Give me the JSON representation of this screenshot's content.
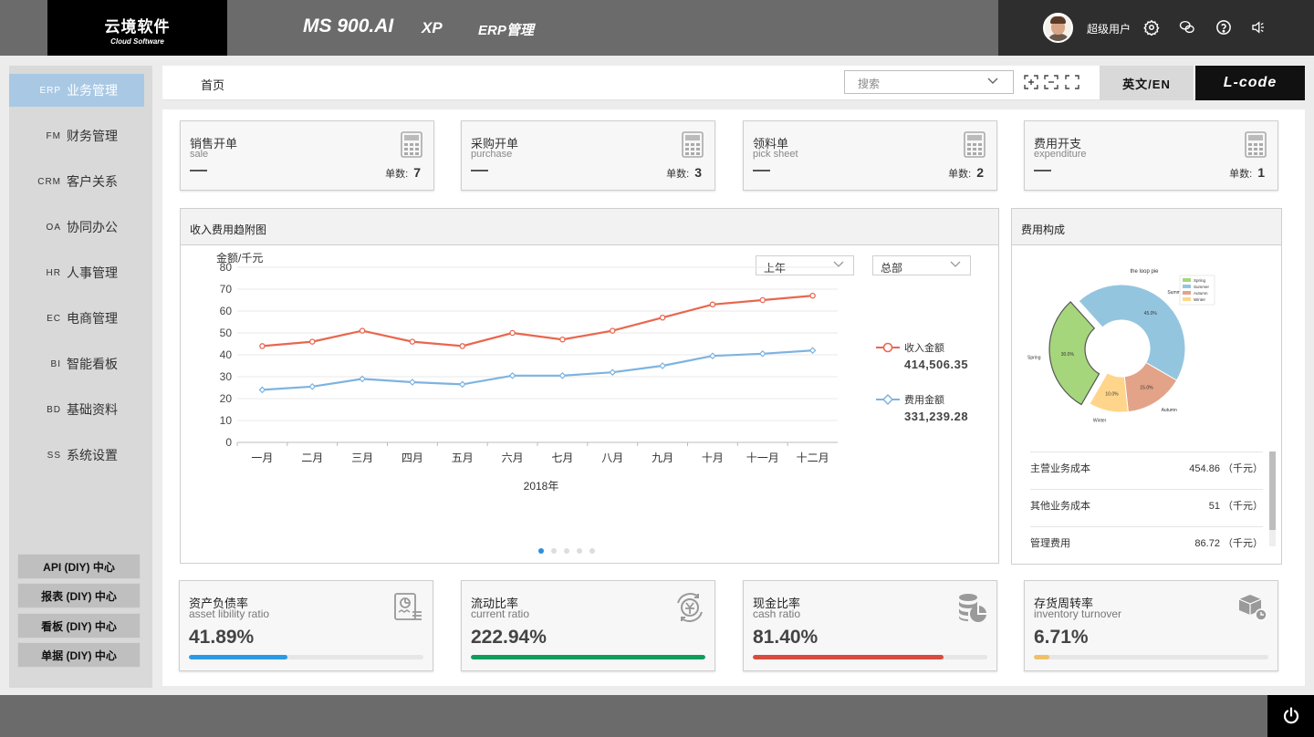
{
  "topbar": {
    "logo_cn": "云境软件",
    "logo_en": "Cloud Software",
    "brand": "MS 900.AI",
    "nav_xp": "XP",
    "nav_erp": "ERP管理",
    "username": "超级用户",
    "icons": [
      "gear-icon",
      "wechat-icon",
      "help-icon",
      "speaker-icon"
    ]
  },
  "sidebar": {
    "items": [
      {
        "code": "ERP",
        "label": "业务管理",
        "active": true
      },
      {
        "code": "FM",
        "label": "财务管理"
      },
      {
        "code": "CRM",
        "label": "客户关系"
      },
      {
        "code": "OA",
        "label": "协同办公"
      },
      {
        "code": "HR",
        "label": "人事管理"
      },
      {
        "code": "EC",
        "label": "电商管理"
      },
      {
        "code": "BI",
        "label": "智能看板"
      },
      {
        "code": "BD",
        "label": "基础资料"
      },
      {
        "code": "SS",
        "label": "系统设置"
      }
    ],
    "diy": [
      "API (DIY) 中心",
      "报表 (DIY) 中心",
      "看板 (DIY) 中心",
      "单据 (DIY) 中心"
    ]
  },
  "header": {
    "breadcrumb": "首页",
    "search_placeholder": "搜索",
    "lang": "英文/EN",
    "lcode": "L-code"
  },
  "stat_cards": [
    {
      "title": "销售开单",
      "sub": "sale",
      "count_label": "单数:",
      "count": "7"
    },
    {
      "title": "采购开单",
      "sub": "purchase",
      "count_label": "单数:",
      "count": "3"
    },
    {
      "title": "领料单",
      "sub": "pick sheet",
      "count_label": "单数:",
      "count": "2"
    },
    {
      "title": "费用开支",
      "sub": "expenditure",
      "count_label": "单数:",
      "count": "1"
    }
  ],
  "trend_panel": {
    "title": "收入费用趋附图",
    "select_period": "上年",
    "select_scope": "总部"
  },
  "chart_data": [
    {
      "type": "line",
      "ylabel": "金额/千元",
      "xlabel": "2018年",
      "categories": [
        "一月",
        "二月",
        "三月",
        "四月",
        "五月",
        "六月",
        "七月",
        "八月",
        "九月",
        "十月",
        "十一月",
        "十二月"
      ],
      "ylim": [
        0,
        80
      ],
      "yticks": [
        0,
        10,
        20,
        30,
        40,
        50,
        60,
        70,
        80
      ],
      "grid": true,
      "legend": "right",
      "series": [
        {
          "name": "收入金额",
          "total": "414,506.35",
          "color": "#e8674e",
          "values": [
            44,
            46,
            51,
            46,
            44,
            50,
            47,
            51,
            57,
            63,
            65,
            67
          ]
        },
        {
          "name": "费用金额",
          "total": "331,239.28",
          "color": "#7db3e0",
          "values": [
            24,
            25.5,
            29,
            27.5,
            26.5,
            30.5,
            30.5,
            32,
            35,
            39.5,
            40.5,
            42
          ]
        }
      ]
    },
    {
      "type": "pie",
      "title": "the loop pie",
      "legend": "top-right",
      "slices": [
        {
          "name": "Spring",
          "value": 30.0,
          "label": "30.0%",
          "color": "#a6d67c",
          "exploded": true
        },
        {
          "name": "Summer",
          "value": 45.0,
          "label": "45.0%",
          "color": "#94c5df"
        },
        {
          "name": "Autumn",
          "value": 15.0,
          "label": "15.0%",
          "color": "#e2a388"
        },
        {
          "name": "Winter",
          "value": 10.0,
          "label": "10.0%",
          "color": "#ffd58c"
        }
      ]
    }
  ],
  "cost_panel": {
    "title": "费用构成",
    "rows": [
      {
        "name": "主营业务成本",
        "value": "454.86 （千元）"
      },
      {
        "name": "其他业务成本",
        "value": "51 （千元）"
      },
      {
        "name": "管理费用",
        "value": "86.72 （千元）"
      }
    ]
  },
  "ratio_cards": [
    {
      "title": "资产负债率",
      "sub": "asset libility ratio",
      "pct": "41.89%",
      "fill": 0.4189,
      "color": "#2b9ae6",
      "icon": "document-chart-icon"
    },
    {
      "title": "流动比率",
      "sub": "current ratio",
      "pct": "222.94%",
      "fill": 1.0,
      "color": "#0e9e5b",
      "icon": "currency-exchange-icon"
    },
    {
      "title": "现金比率",
      "sub": "cash ratio",
      "pct": "81.40%",
      "fill": 0.814,
      "color": "#d94a3f",
      "icon": "coins-chart-icon"
    },
    {
      "title": "存货周转率",
      "sub": "inventory turnover",
      "pct": "6.71%",
      "fill": 0.0671,
      "color": "#f0c069",
      "icon": "box-icon"
    }
  ]
}
